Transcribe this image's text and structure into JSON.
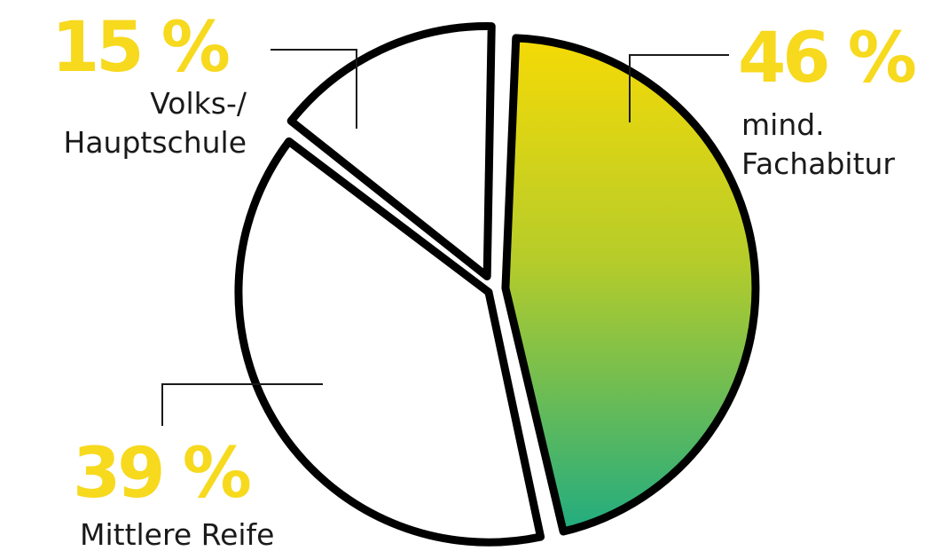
{
  "chart_data": {
    "type": "pie",
    "slices": [
      {
        "value": 46,
        "value_label": "46 %",
        "label_lines": [
          "mind.",
          "Fachabitur"
        ],
        "color": "gradient",
        "gradient": [
          "#F5DA06",
          "#21AC80"
        ]
      },
      {
        "value": 39,
        "value_label": "39 %",
        "label_lines": [
          "Mittlere Reife"
        ],
        "color": "#FFFFFF"
      },
      {
        "value": 15,
        "value_label": "15 %",
        "label_lines": [
          "Volks-/",
          "Hauptschule"
        ],
        "color": "#FFFFFF"
      }
    ],
    "title": "",
    "legend": "none",
    "value_label_color": "#F7D91E",
    "outline_color": "#000000"
  }
}
